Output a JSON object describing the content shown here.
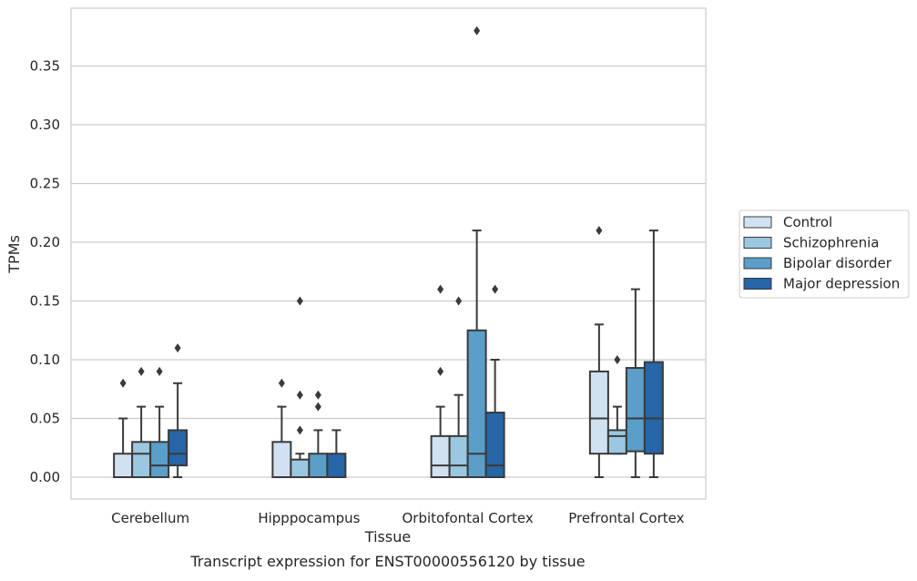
{
  "chart_data": {
    "type": "boxplot",
    "title": "Transcript expression for ENST00000556120 by tissue",
    "xlabel": "Tissue",
    "ylabel": "TPMs",
    "ylim": [
      -0.018,
      0.4
    ],
    "yticks": [
      0.0,
      0.05,
      0.1,
      0.15,
      0.2,
      0.25,
      0.3,
      0.35
    ],
    "ytick_labels": [
      "0.00",
      "0.05",
      "0.10",
      "0.15",
      "0.20",
      "0.25",
      "0.30",
      "0.35"
    ],
    "grid": "horizontal",
    "legend_position": "right",
    "categories": [
      "Cerebellum",
      "Hipppocampus",
      "Orbitofontal Cortex",
      "Prefrontal Cortex"
    ],
    "series": [
      {
        "name": "Control",
        "color": "#d0e2f2",
        "boxes": [
          {
            "whislo": 0.0,
            "q1": 0.0,
            "med": 0.0,
            "q3": 0.02,
            "whishi": 0.05,
            "fliers": [
              0.08
            ]
          },
          {
            "whislo": 0.0,
            "q1": 0.0,
            "med": 0.0,
            "q3": 0.03,
            "whishi": 0.06,
            "fliers": [
              0.08
            ]
          },
          {
            "whislo": 0.0,
            "q1": 0.0,
            "med": 0.01,
            "q3": 0.035,
            "whishi": 0.06,
            "fliers": [
              0.09,
              0.16
            ]
          },
          {
            "whislo": 0.0,
            "q1": 0.02,
            "med": 0.05,
            "q3": 0.09,
            "whishi": 0.13,
            "fliers": [
              0.21
            ]
          }
        ]
      },
      {
        "name": "Schizophrenia",
        "color": "#9ac8e0",
        "boxes": [
          {
            "whislo": 0.0,
            "q1": 0.0,
            "med": 0.02,
            "q3": 0.03,
            "whishi": 0.06,
            "fliers": [
              0.09
            ]
          },
          {
            "whislo": 0.0,
            "q1": 0.0,
            "med": 0.0,
            "q3": 0.015,
            "whishi": 0.02,
            "fliers": [
              0.04,
              0.07,
              0.15
            ]
          },
          {
            "whislo": 0.0,
            "q1": 0.0,
            "med": 0.01,
            "q3": 0.035,
            "whishi": 0.07,
            "fliers": [
              0.15
            ]
          },
          {
            "whislo": 0.02,
            "q1": 0.02,
            "med": 0.035,
            "q3": 0.04,
            "whishi": 0.06,
            "fliers": [
              0.1
            ]
          }
        ]
      },
      {
        "name": "Bipolar disorder",
        "color": "#5a9ec9",
        "boxes": [
          {
            "whislo": 0.0,
            "q1": 0.0,
            "med": 0.01,
            "q3": 0.03,
            "whishi": 0.06,
            "fliers": [
              0.09
            ]
          },
          {
            "whislo": 0.0,
            "q1": 0.0,
            "med": 0.0,
            "q3": 0.02,
            "whishi": 0.04,
            "fliers": [
              0.06,
              0.07
            ]
          },
          {
            "whislo": 0.0,
            "q1": 0.0,
            "med": 0.02,
            "q3": 0.125,
            "whishi": 0.21,
            "fliers": [
              0.38
            ]
          },
          {
            "whislo": 0.0,
            "q1": 0.022,
            "med": 0.05,
            "q3": 0.093,
            "whishi": 0.16,
            "fliers": []
          }
        ]
      },
      {
        "name": "Major depression",
        "color": "#2565a8",
        "boxes": [
          {
            "whislo": 0.0,
            "q1": 0.01,
            "med": 0.02,
            "q3": 0.04,
            "whishi": 0.08,
            "fliers": [
              0.11
            ]
          },
          {
            "whislo": 0.0,
            "q1": 0.0,
            "med": 0.0,
            "q3": 0.02,
            "whishi": 0.04,
            "fliers": []
          },
          {
            "whislo": 0.0,
            "q1": 0.0,
            "med": 0.01,
            "q3": 0.055,
            "whishi": 0.1,
            "fliers": [
              0.16
            ]
          },
          {
            "whislo": 0.0,
            "q1": 0.02,
            "med": 0.05,
            "q3": 0.098,
            "whishi": 0.21,
            "fliers": []
          }
        ]
      }
    ]
  }
}
